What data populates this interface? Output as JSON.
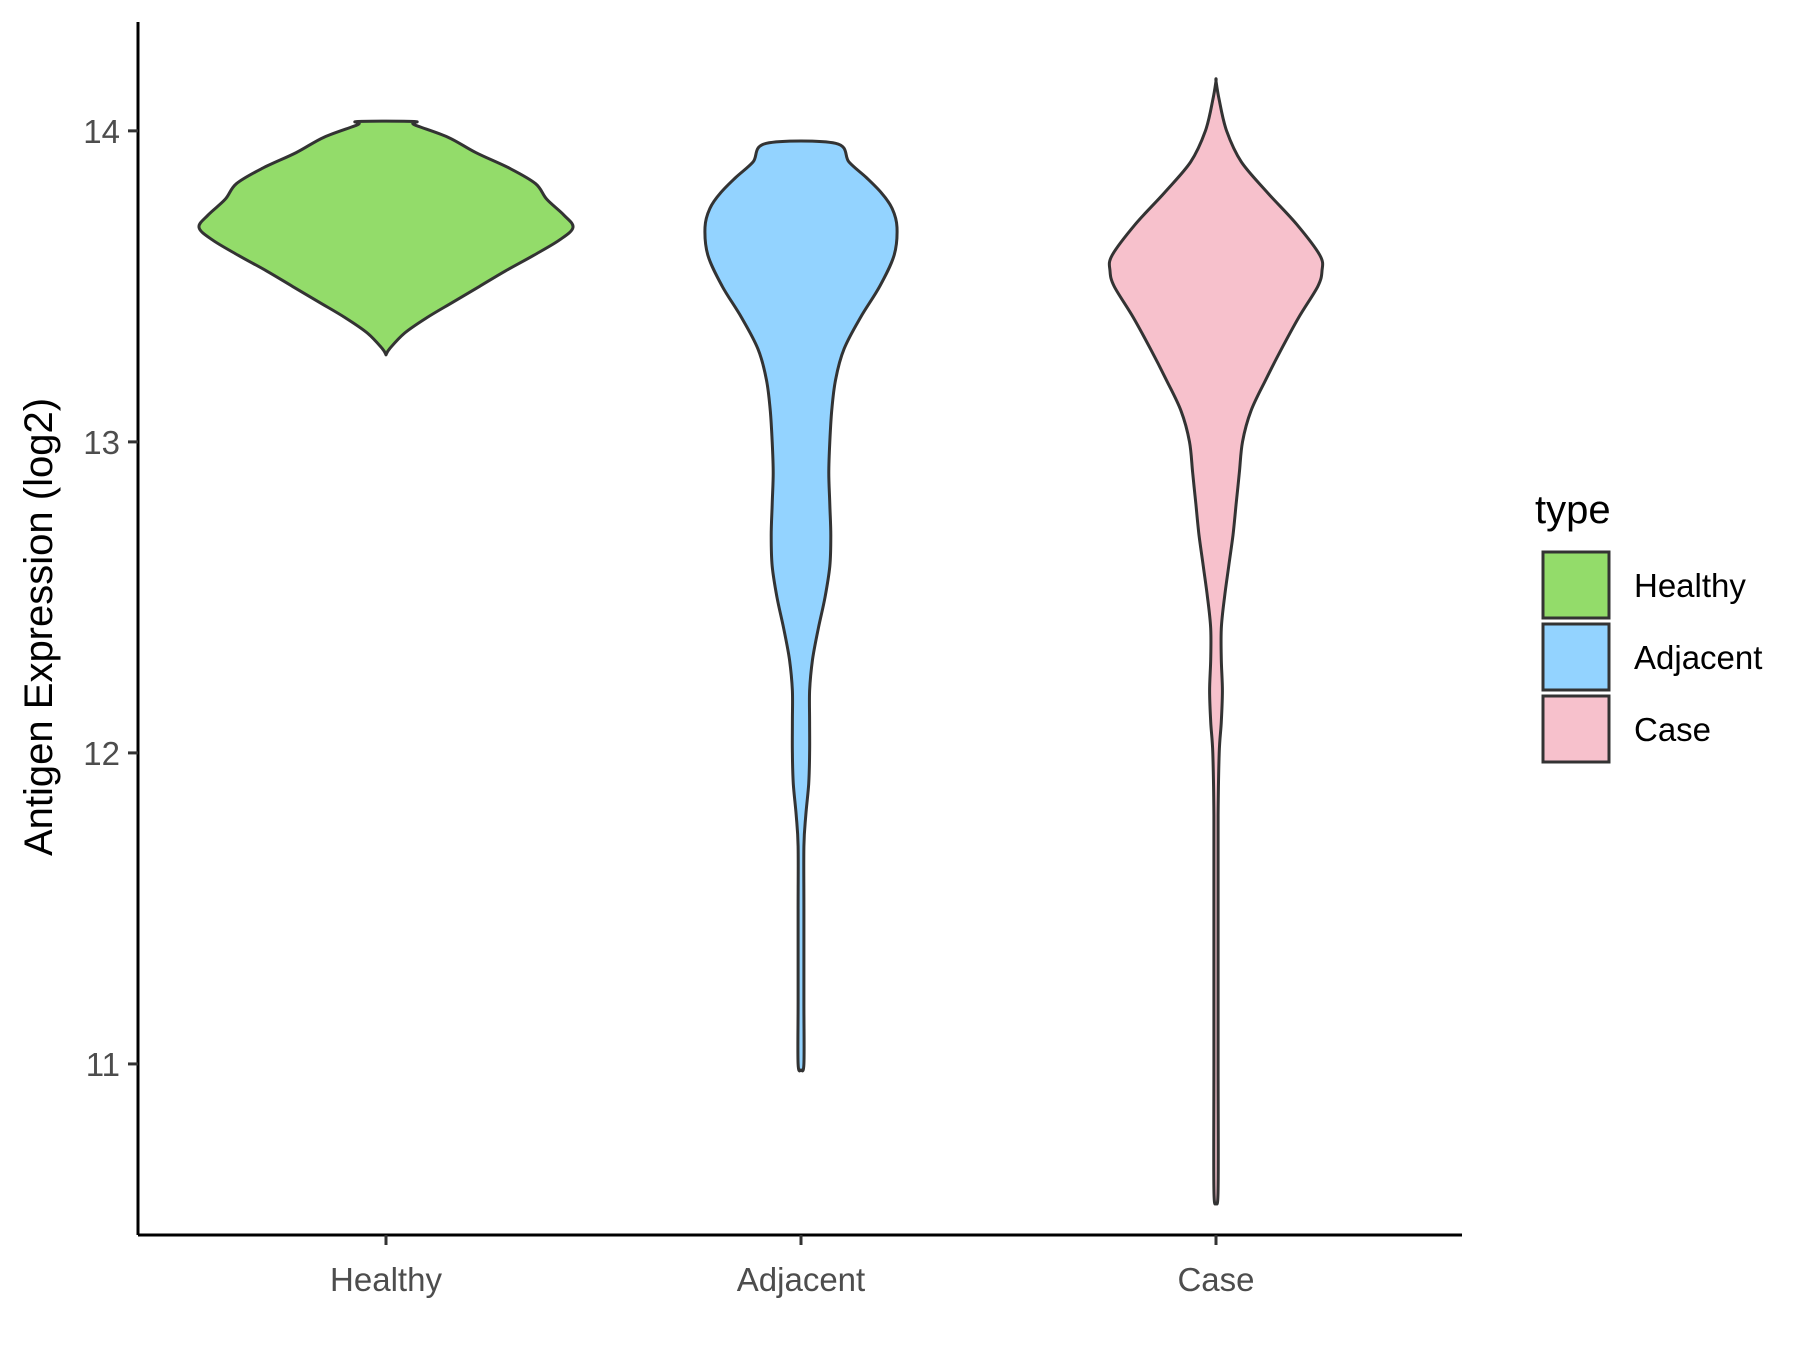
{
  "chart_data": {
    "type": "violin",
    "title": "",
    "xlabel": "",
    "ylabel": "Antigen Expression (log2)",
    "ylim": [
      10.45,
      14.35
    ],
    "yticks": [
      11,
      12,
      13,
      14
    ],
    "categories": [
      "Healthy",
      "Adjacent",
      "Case"
    ],
    "grid": false,
    "legend": {
      "title": "type",
      "position": "right",
      "entries": [
        "Healthy",
        "Adjacent",
        "Case"
      ]
    },
    "series": [
      {
        "name": "Healthy",
        "color": "#93DC6A",
        "min": 13.28,
        "max": 14.03,
        "profile": [
          [
            13.28,
            0.0
          ],
          [
            13.3,
            0.02
          ],
          [
            13.35,
            0.1
          ],
          [
            13.4,
            0.22
          ],
          [
            13.45,
            0.36
          ],
          [
            13.5,
            0.5
          ],
          [
            13.55,
            0.64
          ],
          [
            13.6,
            0.79
          ],
          [
            13.65,
            0.93
          ],
          [
            13.69,
            1.0
          ],
          [
            13.73,
            0.95
          ],
          [
            13.78,
            0.86
          ],
          [
            13.83,
            0.8
          ],
          [
            13.88,
            0.66
          ],
          [
            13.93,
            0.48
          ],
          [
            13.98,
            0.33
          ],
          [
            14.02,
            0.15
          ],
          [
            14.03,
            0.15
          ]
        ]
      },
      {
        "name": "Adjacent",
        "color": "#93D3FF",
        "min": 10.98,
        "max": 13.96,
        "profile": [
          [
            10.98,
            0.0
          ],
          [
            11.0,
            0.03
          ],
          [
            11.2,
            0.03
          ],
          [
            11.5,
            0.03
          ],
          [
            11.7,
            0.03
          ],
          [
            11.8,
            0.05
          ],
          [
            11.9,
            0.08
          ],
          [
            12.0,
            0.09
          ],
          [
            12.1,
            0.09
          ],
          [
            12.2,
            0.09
          ],
          [
            12.3,
            0.12
          ],
          [
            12.4,
            0.18
          ],
          [
            12.5,
            0.25
          ],
          [
            12.6,
            0.3
          ],
          [
            12.7,
            0.31
          ],
          [
            12.8,
            0.3
          ],
          [
            12.9,
            0.29
          ],
          [
            13.0,
            0.3
          ],
          [
            13.1,
            0.32
          ],
          [
            13.2,
            0.36
          ],
          [
            13.3,
            0.45
          ],
          [
            13.4,
            0.62
          ],
          [
            13.5,
            0.82
          ],
          [
            13.6,
            0.97
          ],
          [
            13.69,
            1.0
          ],
          [
            13.75,
            0.95
          ],
          [
            13.8,
            0.84
          ],
          [
            13.85,
            0.68
          ],
          [
            13.9,
            0.5
          ],
          [
            13.96,
            0.36
          ]
        ]
      },
      {
        "name": "Case",
        "color": "#F7C1CC",
        "min": 10.55,
        "max": 14.16,
        "profile": [
          [
            10.55,
            0.0
          ],
          [
            10.6,
            0.02
          ],
          [
            11.0,
            0.02
          ],
          [
            11.5,
            0.02
          ],
          [
            11.8,
            0.02
          ],
          [
            12.0,
            0.03
          ],
          [
            12.1,
            0.05
          ],
          [
            12.2,
            0.06
          ],
          [
            12.3,
            0.05
          ],
          [
            12.4,
            0.05
          ],
          [
            12.5,
            0.08
          ],
          [
            12.6,
            0.12
          ],
          [
            12.7,
            0.16
          ],
          [
            12.8,
            0.19
          ],
          [
            12.9,
            0.22
          ],
          [
            13.0,
            0.25
          ],
          [
            13.1,
            0.33
          ],
          [
            13.2,
            0.47
          ],
          [
            13.3,
            0.62
          ],
          [
            13.4,
            0.78
          ],
          [
            13.5,
            0.96
          ],
          [
            13.55,
            1.0
          ],
          [
            13.6,
            0.98
          ],
          [
            13.7,
            0.76
          ],
          [
            13.8,
            0.49
          ],
          [
            13.9,
            0.24
          ],
          [
            14.0,
            0.1
          ],
          [
            14.1,
            0.03
          ],
          [
            14.16,
            0.0
          ]
        ]
      }
    ]
  }
}
